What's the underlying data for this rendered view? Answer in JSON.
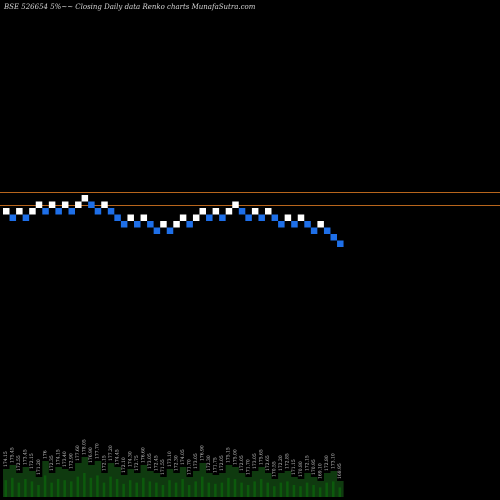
{
  "header": {
    "title": "BSE 526654  5%~~  Closing Daily data  Renko  charts MunafaSutra.com"
  },
  "colors": {
    "background": "#000000",
    "up_brick": "#ffffff",
    "down_brick": "#1e6fe8",
    "reference_line": "#b8651c",
    "volume_fill": "#0f3a0f",
    "volume_bar": "#0c5a0c"
  },
  "chart_data": {
    "type": "renko",
    "bricks": [
      {
        "dir": "up",
        "level": 0
      },
      {
        "dir": "down",
        "level": -1
      },
      {
        "dir": "up",
        "level": 0
      },
      {
        "dir": "down",
        "level": -1
      },
      {
        "dir": "up",
        "level": 0
      },
      {
        "dir": "up",
        "level": 1
      },
      {
        "dir": "down",
        "level": 0
      },
      {
        "dir": "up",
        "level": 1
      },
      {
        "dir": "down",
        "level": 0
      },
      {
        "dir": "up",
        "level": 1
      },
      {
        "dir": "down",
        "level": 0
      },
      {
        "dir": "up",
        "level": 1
      },
      {
        "dir": "up",
        "level": 2
      },
      {
        "dir": "down",
        "level": 1
      },
      {
        "dir": "down",
        "level": 0
      },
      {
        "dir": "up",
        "level": 1
      },
      {
        "dir": "down",
        "level": 0
      },
      {
        "dir": "down",
        "level": -1
      },
      {
        "dir": "down",
        "level": -2
      },
      {
        "dir": "up",
        "level": -1
      },
      {
        "dir": "down",
        "level": -2
      },
      {
        "dir": "up",
        "level": -1
      },
      {
        "dir": "down",
        "level": -2
      },
      {
        "dir": "down",
        "level": -3
      },
      {
        "dir": "up",
        "level": -2
      },
      {
        "dir": "down",
        "level": -3
      },
      {
        "dir": "up",
        "level": -2
      },
      {
        "dir": "up",
        "level": -1
      },
      {
        "dir": "down",
        "level": -2
      },
      {
        "dir": "up",
        "level": -1
      },
      {
        "dir": "up",
        "level": 0
      },
      {
        "dir": "down",
        "level": -1
      },
      {
        "dir": "up",
        "level": 0
      },
      {
        "dir": "down",
        "level": -1
      },
      {
        "dir": "up",
        "level": 0
      },
      {
        "dir": "up",
        "level": 1
      },
      {
        "dir": "down",
        "level": 0
      },
      {
        "dir": "down",
        "level": -1
      },
      {
        "dir": "up",
        "level": 0
      },
      {
        "dir": "down",
        "level": -1
      },
      {
        "dir": "up",
        "level": 0
      },
      {
        "dir": "down",
        "level": -1
      },
      {
        "dir": "down",
        "level": -2
      },
      {
        "dir": "up",
        "level": -1
      },
      {
        "dir": "down",
        "level": -2
      },
      {
        "dir": "up",
        "level": -1
      },
      {
        "dir": "down",
        "level": -2
      },
      {
        "dir": "down",
        "level": -3
      },
      {
        "dir": "up",
        "level": -2
      },
      {
        "dir": "down",
        "level": -3
      },
      {
        "dir": "down",
        "level": -4
      },
      {
        "dir": "down",
        "level": -5
      }
    ],
    "reference_levels": [
      2.5,
      0.5
    ],
    "volume_labels": [
      "174.15",
      "175.45",
      "172.55",
      "173.45",
      "172.15",
      "171.20",
      "176",
      "172.35",
      "174.15",
      "173.40",
      "172.90",
      "177.60",
      "178.05",
      "176.90",
      "177.70",
      "172.15",
      "177.20",
      "174.45",
      "172.10",
      "174.30",
      "172.75",
      "176.60",
      "173.05",
      "172.45",
      "171.55",
      "173.10",
      "172.30",
      "174.05",
      "171.70",
      "173.05",
      "176.90",
      "172.30",
      "171.75",
      "172.05",
      "175.15",
      "175.00",
      "172.05",
      "171.70",
      "173.05",
      "175.65",
      "172.65",
      "170.55",
      "172.20",
      "172.85",
      "171.15",
      "170.80",
      "172.15",
      "170.95",
      "169.10",
      "172.80",
      "173.10",
      "168.95"
    ],
    "volume_values": [
      14,
      16,
      12,
      15,
      13,
      10,
      18,
      12,
      15,
      14,
      13,
      17,
      20,
      16,
      18,
      12,
      17,
      15,
      11,
      14,
      12,
      16,
      13,
      12,
      10,
      14,
      12,
      15,
      10,
      13,
      17,
      12,
      11,
      12,
      16,
      15,
      12,
      10,
      13,
      15,
      12,
      9,
      12,
      13,
      10,
      9,
      12,
      10,
      8,
      12,
      13,
      8
    ]
  }
}
